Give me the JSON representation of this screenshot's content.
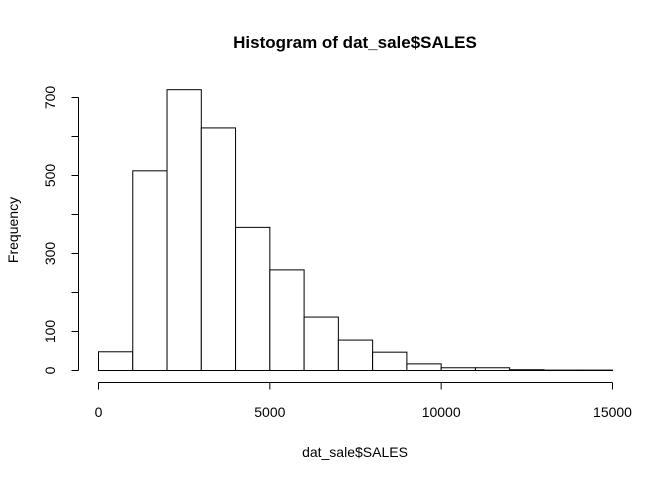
{
  "chart_data": {
    "type": "bar",
    "title": "Histogram of dat_sale$SALES",
    "xlabel": "dat_sale$SALES",
    "ylabel": "Frequency",
    "bin_edges": [
      0,
      1000,
      2000,
      3000,
      4000,
      5000,
      6000,
      7000,
      8000,
      9000,
      10000,
      11000,
      12000,
      13000,
      14000,
      15000
    ],
    "values": [
      48,
      512,
      720,
      622,
      367,
      258,
      137,
      78,
      47,
      17,
      7,
      7,
      2,
      1,
      1
    ],
    "xlim": [
      0,
      15000
    ],
    "ylim": [
      0,
      720
    ],
    "x_ticks": [
      0,
      5000,
      10000,
      15000
    ],
    "x_tick_labels": [
      "0",
      "5000",
      "10000",
      "15000"
    ],
    "y_ticks": [
      0,
      100,
      200,
      300,
      400,
      500,
      600,
      700
    ],
    "y_tick_labels": [
      "0",
      "100",
      "",
      "300",
      "",
      "500",
      "",
      "700"
    ],
    "grid": false,
    "colors": {
      "bar_fill": "#ffffff",
      "bar_stroke": "#000000"
    }
  }
}
